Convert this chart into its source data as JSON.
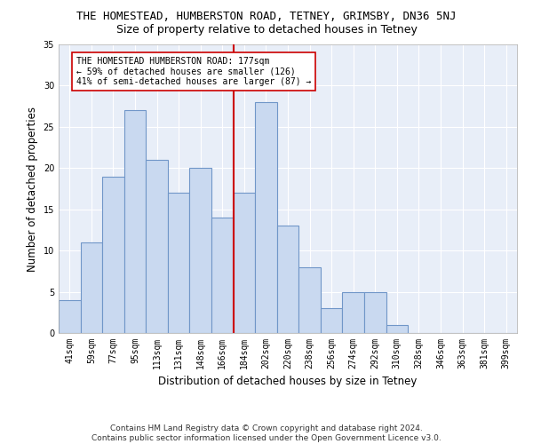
{
  "title": "THE HOMESTEAD, HUMBERSTON ROAD, TETNEY, GRIMSBY, DN36 5NJ",
  "subtitle": "Size of property relative to detached houses in Tetney",
  "xlabel": "Distribution of detached houses by size in Tetney",
  "ylabel": "Number of detached properties",
  "categories": [
    "41sqm",
    "59sqm",
    "77sqm",
    "95sqm",
    "113sqm",
    "131sqm",
    "148sqm",
    "166sqm",
    "184sqm",
    "202sqm",
    "220sqm",
    "238sqm",
    "256sqm",
    "274sqm",
    "292sqm",
    "310sqm",
    "328sqm",
    "346sqm",
    "363sqm",
    "381sqm",
    "399sqm"
  ],
  "values": [
    4,
    11,
    19,
    27,
    21,
    17,
    20,
    14,
    17,
    28,
    13,
    8,
    3,
    5,
    5,
    1,
    0,
    0,
    0,
    0,
    0
  ],
  "bar_color": "#c9d9f0",
  "bar_edge_color": "#7096c8",
  "bar_edge_width": 0.8,
  "vline_x": 7.5,
  "vline_color": "#cc0000",
  "annotation_text": "THE HOMESTEAD HUMBERSTON ROAD: 177sqm\n← 59% of detached houses are smaller (126)\n41% of semi-detached houses are larger (87) →",
  "annotation_box_color": "#ffffff",
  "annotation_box_edge": "#cc0000",
  "ylim": [
    0,
    35
  ],
  "yticks": [
    0,
    5,
    10,
    15,
    20,
    25,
    30,
    35
  ],
  "background_color": "#e8eef8",
  "footer_line1": "Contains HM Land Registry data © Crown copyright and database right 2024.",
  "footer_line2": "Contains public sector information licensed under the Open Government Licence v3.0.",
  "title_fontsize": 9,
  "subtitle_fontsize": 9,
  "xlabel_fontsize": 8.5,
  "ylabel_fontsize": 8.5,
  "tick_fontsize": 7,
  "annot_fontsize": 7,
  "footer_fontsize": 6.5
}
